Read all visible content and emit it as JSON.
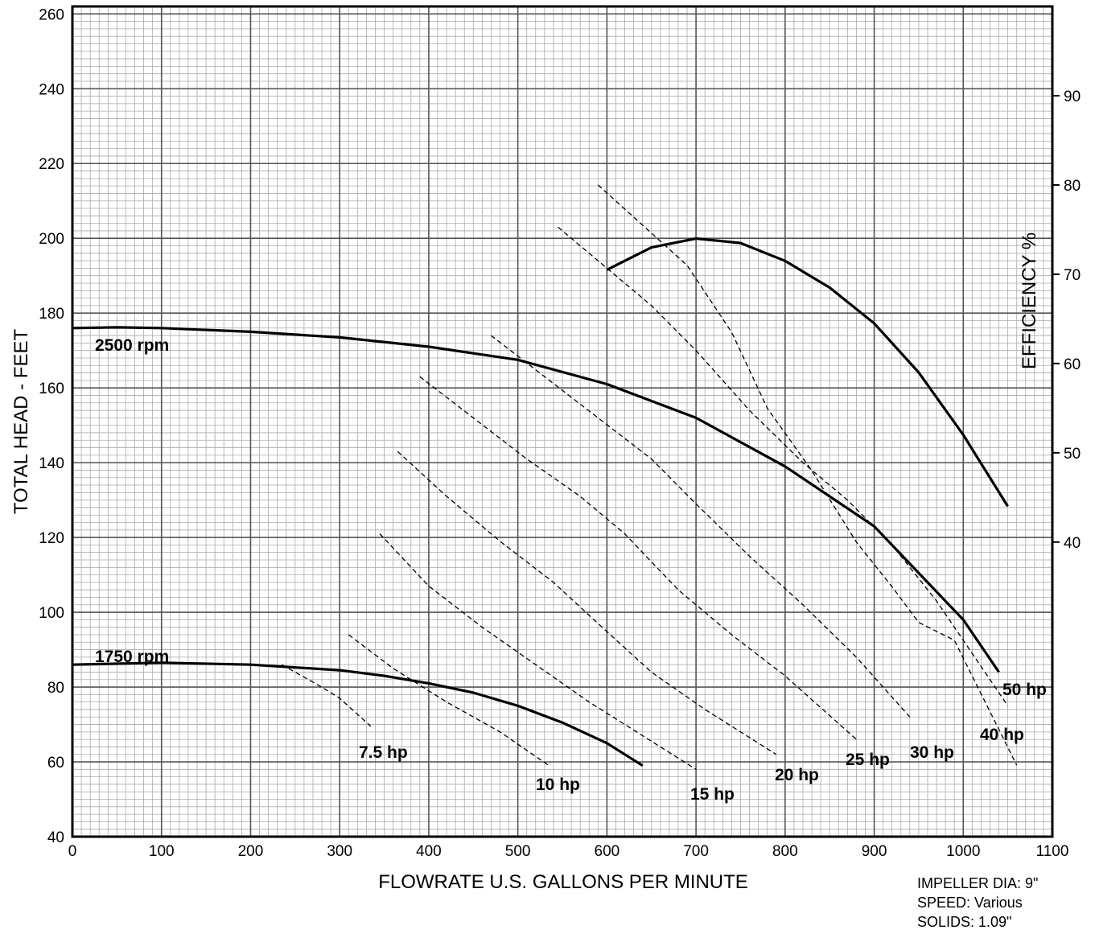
{
  "chart_data": {
    "type": "line",
    "xlabel": "FLOWRATE U.S. GALLONS PER MINUTE",
    "ylabel": "TOTAL HEAD - FEET",
    "y2label": "EFFICIENCY %",
    "xlim": [
      0,
      1100
    ],
    "ylim": [
      40,
      262
    ],
    "y2lim": [
      7,
      100
    ],
    "x_ticks": [
      0,
      100,
      200,
      300,
      400,
      500,
      600,
      700,
      800,
      900,
      1000,
      1100
    ],
    "y_ticks": [
      40,
      60,
      80,
      100,
      120,
      140,
      160,
      180,
      200,
      220,
      240,
      260
    ],
    "y2_ticks": [
      40,
      50,
      60,
      70,
      80,
      90
    ],
    "grid": true,
    "head_curves": [
      {
        "name": "2500 rpm",
        "x": [
          0,
          50,
          100,
          200,
          300,
          400,
          500,
          600,
          700,
          800,
          900,
          1000,
          1040
        ],
        "y": [
          176,
          176.2,
          176,
          175,
          173.5,
          171,
          167.5,
          161,
          152,
          139,
          123,
          98,
          84
        ]
      },
      {
        "name": "1750 rpm",
        "x": [
          0,
          100,
          200,
          300,
          350,
          400,
          450,
          500,
          550,
          600,
          640
        ],
        "y": [
          86,
          86.5,
          86,
          84.5,
          83,
          81,
          78.5,
          75,
          70.5,
          65,
          59
        ]
      }
    ],
    "efficiency_curve": {
      "x": [
        600,
        650,
        700,
        750,
        800,
        850,
        900,
        950,
        1000,
        1050
      ],
      "y": [
        70.5,
        73,
        74,
        73.5,
        71.5,
        68.5,
        64.5,
        59,
        52,
        44
      ]
    },
    "power_lines": [
      {
        "name": "7.5 hp",
        "x": [
          235,
          280,
          300,
          335
        ],
        "y": [
          86,
          80,
          77,
          69.5
        ]
      },
      {
        "name": "10 hp",
        "x": [
          310,
          360,
          420,
          480,
          535
        ],
        "y": [
          94,
          85,
          76,
          68,
          59
        ]
      },
      {
        "name": "15 hp",
        "x": [
          345,
          400,
          460,
          520,
          580,
          640,
          700
        ],
        "y": [
          121,
          107,
          96,
          86,
          76,
          67,
          58
        ]
      },
      {
        "name": "20 hp",
        "x": [
          365,
          420,
          480,
          540,
          590,
          650,
          710,
          790
        ],
        "y": [
          143,
          131,
          119,
          108,
          97,
          84,
          74,
          62
        ]
      },
      {
        "name": "25 hp",
        "x": [
          390,
          450,
          510,
          570,
          620,
          680,
          740,
          800,
          880
        ],
        "y": [
          163,
          152,
          141,
          131,
          121,
          106,
          94,
          83,
          66
        ]
      },
      {
        "name": "30 hp",
        "x": [
          470,
          530,
          590,
          650,
          700,
          760,
          820,
          880,
          940
        ],
        "y": [
          174,
          163,
          152,
          141,
          129,
          115,
          102,
          88,
          72
        ]
      },
      {
        "name": "40 hp",
        "x": [
          545,
          600,
          650,
          700,
          760,
          820,
          870,
          920,
          970,
          1050
        ],
        "y": [
          203,
          192,
          182,
          170,
          154,
          140,
          130,
          118,
          103,
          75
        ]
      },
      {
        "name": "50 hp",
        "x": [
          590,
          640,
          690,
          740,
          780,
          830,
          880,
          920,
          950,
          990,
          1060
        ],
        "y": [
          80,
          75.5,
          71,
          63.5,
          55,
          48,
          40,
          35,
          31,
          29,
          15
        ]
      }
    ],
    "annotations": [
      "IMPELLER DIA: 9\"",
      "SPEED: Various",
      "SOLIDS: 1.09\""
    ]
  }
}
